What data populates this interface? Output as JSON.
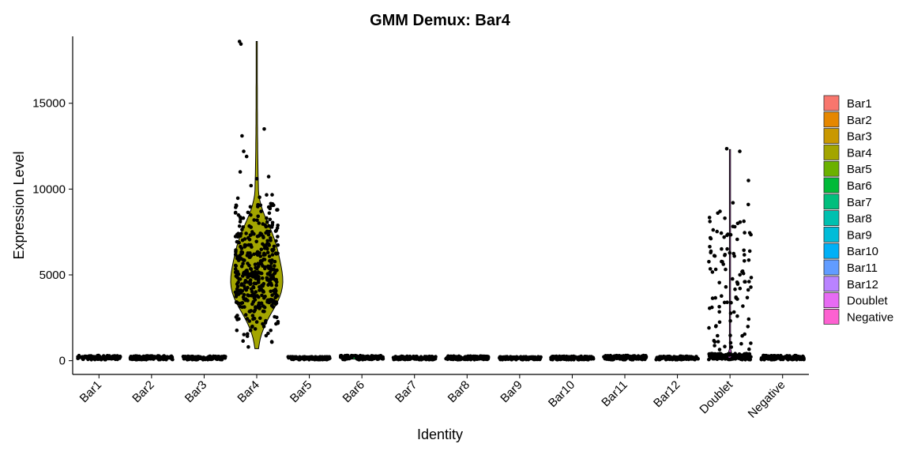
{
  "chart_data": {
    "type": "violin",
    "title": "GMM Demux: Bar4",
    "xlabel": "Identity",
    "ylabel": "Expression Level",
    "ylim": [
      -800,
      18900
    ],
    "yticks": [
      0,
      5000,
      10000,
      15000
    ],
    "categories": [
      "Bar1",
      "Bar2",
      "Bar3",
      "Bar4",
      "Bar5",
      "Bar6",
      "Bar7",
      "Bar8",
      "Bar9",
      "Bar10",
      "Bar11",
      "Bar12",
      "Doublet",
      "Negative"
    ],
    "colors": [
      "#F8766D",
      "#E58700",
      "#C99800",
      "#A3A500",
      "#6BB100",
      "#00BA38",
      "#00BF7D",
      "#00C0AF",
      "#00BCD8",
      "#00B0F6",
      "#619CFF",
      "#B983FF",
      "#E76BF3",
      "#FD61D1"
    ],
    "legend": {
      "position": "right",
      "entries": [
        "Bar1",
        "Bar2",
        "Bar3",
        "Bar4",
        "Bar5",
        "Bar6",
        "Bar7",
        "Bar8",
        "Bar9",
        "Bar10",
        "Bar11",
        "Bar12",
        "Doublet",
        "Negative"
      ]
    },
    "violins": [
      {
        "category": "Bar1",
        "min": 60,
        "max": 300,
        "median": 150
      },
      {
        "category": "Bar2",
        "min": 60,
        "max": 280,
        "median": 140
      },
      {
        "category": "Bar3",
        "min": 60,
        "max": 260,
        "median": 140
      },
      {
        "category": "Bar4",
        "min": 700,
        "max": 18600,
        "median": 4500
      },
      {
        "category": "Bar5",
        "min": 60,
        "max": 230,
        "median": 130
      },
      {
        "category": "Bar6",
        "min": 60,
        "max": 450,
        "median": 150
      },
      {
        "category": "Bar7",
        "min": 60,
        "max": 260,
        "median": 140
      },
      {
        "category": "Bar8",
        "min": 60,
        "max": 270,
        "median": 140
      },
      {
        "category": "Bar9",
        "min": 60,
        "max": 230,
        "median": 130
      },
      {
        "category": "Bar10",
        "min": 60,
        "max": 260,
        "median": 140
      },
      {
        "category": "Bar11",
        "min": 60,
        "max": 400,
        "median": 150
      },
      {
        "category": "Bar12",
        "min": 60,
        "max": 260,
        "median": 140
      },
      {
        "category": "Doublet",
        "min": 60,
        "max": 12300,
        "median": 250
      },
      {
        "category": "Negative",
        "min": 60,
        "max": 380,
        "median": 140
      }
    ],
    "outlier_points": [
      {
        "category": "Bar4",
        "y": 18600
      },
      {
        "category": "Bar4",
        "y": 18450
      },
      {
        "category": "Bar4",
        "y": 13500
      },
      {
        "category": "Bar4",
        "y": 13100
      },
      {
        "category": "Bar4",
        "y": 12200
      },
      {
        "category": "Bar4",
        "y": 11900
      },
      {
        "category": "Bar4",
        "y": 11000
      },
      {
        "category": "Bar4",
        "y": 10600
      },
      {
        "category": "Bar4",
        "y": 10200
      },
      {
        "category": "Doublet",
        "y": 12350
      },
      {
        "category": "Doublet",
        "y": 12200
      },
      {
        "category": "Doublet",
        "y": 10500
      },
      {
        "category": "Doublet",
        "y": 9200
      },
      {
        "category": "Doublet",
        "y": 9100
      },
      {
        "category": "Doublet",
        "y": 8700
      },
      {
        "category": "Doublet",
        "y": 8600
      },
      {
        "category": "Doublet",
        "y": 8300
      },
      {
        "category": "Doublet",
        "y": 8000
      }
    ]
  }
}
